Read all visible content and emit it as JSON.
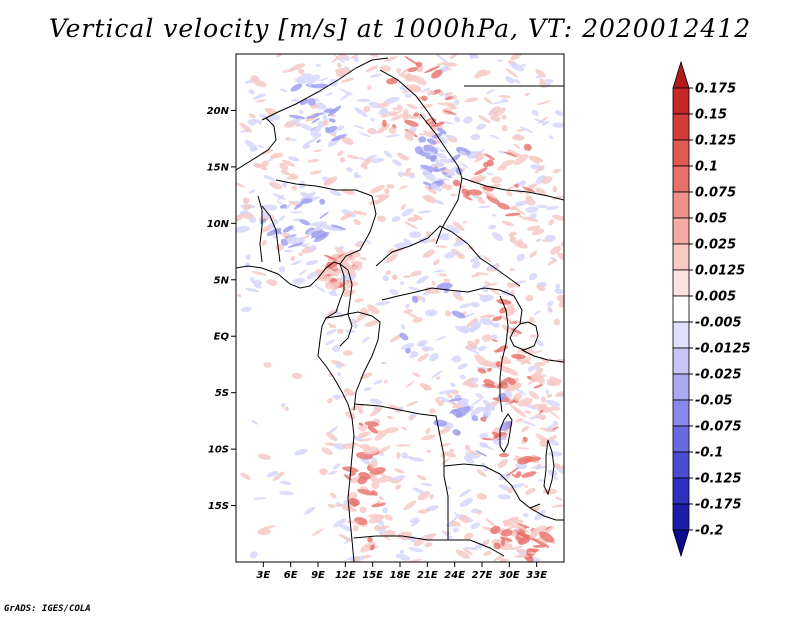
{
  "title": "Vertical velocity [m/s] at 1000hPa, VT: 2020012412",
  "credit": "GrADS: IGES/COLA",
  "map": {
    "lon_range": [
      0,
      36
    ],
    "lat_range": [
      -20,
      25
    ],
    "lat_ticks": [
      {
        "value": 20,
        "label": "20N"
      },
      {
        "value": 15,
        "label": "15N"
      },
      {
        "value": 10,
        "label": "10N"
      },
      {
        "value": 5,
        "label": "5N"
      },
      {
        "value": 0,
        "label": "EQ"
      },
      {
        "value": -5,
        "label": "5S"
      },
      {
        "value": -10,
        "label": "10S"
      },
      {
        "value": -15,
        "label": "15S"
      }
    ],
    "lon_ticks": [
      {
        "value": 3,
        "label": "3E"
      },
      {
        "value": 6,
        "label": "6E"
      },
      {
        "value": 9,
        "label": "9E"
      },
      {
        "value": 12,
        "label": "12E"
      },
      {
        "value": 15,
        "label": "15E"
      },
      {
        "value": 18,
        "label": "18E"
      },
      {
        "value": 21,
        "label": "21E"
      },
      {
        "value": 24,
        "label": "24E"
      },
      {
        "value": 27,
        "label": "27E"
      },
      {
        "value": 30,
        "label": "30E"
      },
      {
        "value": 33,
        "label": "33E"
      }
    ],
    "colors": {
      "positive_strong": "#e8706a",
      "positive_weak": "#f6c9c4",
      "negative_strong": "#9a9af0",
      "negative_weak": "#d6d6fb",
      "border": "#000000"
    }
  },
  "colorbar": {
    "levels": [
      "0.175",
      "0.15",
      "0.125",
      "0.1",
      "0.075",
      "0.05",
      "0.025",
      "0.0125",
      "0.005",
      "-0.005",
      "-0.0125",
      "-0.025",
      "-0.05",
      "-0.075",
      "-0.1",
      "-0.125",
      "-0.175",
      "-0.2"
    ],
    "colors": [
      "#b01a1a",
      "#c62828",
      "#d43c38",
      "#e05a52",
      "#e8706a",
      "#ef908a",
      "#f5aaa4",
      "#f9c9c4",
      "#fde4e1",
      "#ffffff",
      "#e0e0fc",
      "#c6c6f7",
      "#a9a9f2",
      "#8888ea",
      "#6a6ae0",
      "#4c4cd2",
      "#3030bf",
      "#1c1ca8",
      "#0c0c90"
    ]
  }
}
